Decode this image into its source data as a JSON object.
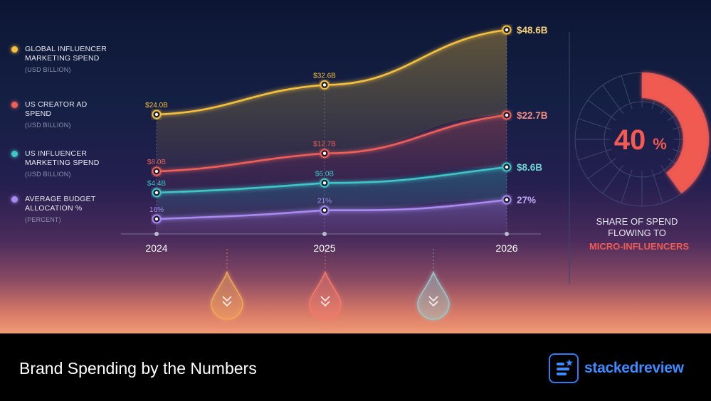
{
  "legend": [
    {
      "label": "GLOBAL INFLUENCER MARKETING SPEND",
      "sub": "(USD BILLION)",
      "color": "#f4c03e"
    },
    {
      "label": "US CREATOR AD SPEND",
      "sub": "(USD BILLION)",
      "color": "#f0605a"
    },
    {
      "label": "US INFLUENCER MARKETING SPEND",
      "sub": "(USD BILLION)",
      "color": "#3fc6c6"
    },
    {
      "label": "AVERAGE BUDGET ALLOCATION %",
      "sub": "(PERCENT)",
      "color": "#a98af0"
    }
  ],
  "chart_data": {
    "type": "line",
    "x": [
      "2024",
      "2025",
      "2026"
    ],
    "series": [
      {
        "name": "GLOBAL INFLUENCER MARKETING SPEND",
        "values": [
          24.0,
          32.6,
          48.6
        ],
        "labels": [
          "$24.0B",
          "$32.6B",
          "$48.6B"
        ],
        "color": "#f4c03e"
      },
      {
        "name": "US CREATOR AD SPEND",
        "values": [
          8.0,
          12.7,
          22.7
        ],
        "labels": [
          "$8.0B",
          "$12.7B",
          "$22.7B"
        ],
        "color": "#f0605a"
      },
      {
        "name": "US INFLUENCER MARKETING SPEND",
        "values": [
          4.4,
          6.0,
          8.6
        ],
        "labels": [
          "$4.4B",
          "$6.0B",
          "$8.6B"
        ],
        "color": "#3fc6c6"
      },
      {
        "name": "AVERAGE BUDGET ALLOCATION %",
        "values": [
          16,
          21,
          27
        ],
        "labels": [
          "16%",
          "21%",
          "27%"
        ],
        "color": "#a98af0"
      }
    ]
  },
  "donut": {
    "value": 40,
    "value_label": "40",
    "unit": "%",
    "caption_line1": "SHARE OF SPEND",
    "caption_line2": "FLOWING TO",
    "caption_highlight": "MICRO-INFLUENCERS",
    "color": "#f25a52"
  },
  "drops": [
    {
      "icon": "chevron-down-double-icon",
      "color": "#f2a65a"
    },
    {
      "icon": "chevron-down-double-icon",
      "color": "#f27a6a"
    },
    {
      "icon": "chevron-down-double-icon",
      "color": "#9ac8c8"
    }
  ],
  "footer": {
    "title": "Brand Spending by the Numbers",
    "brand": "stackedreview",
    "brand_color": "#3c8bff"
  }
}
